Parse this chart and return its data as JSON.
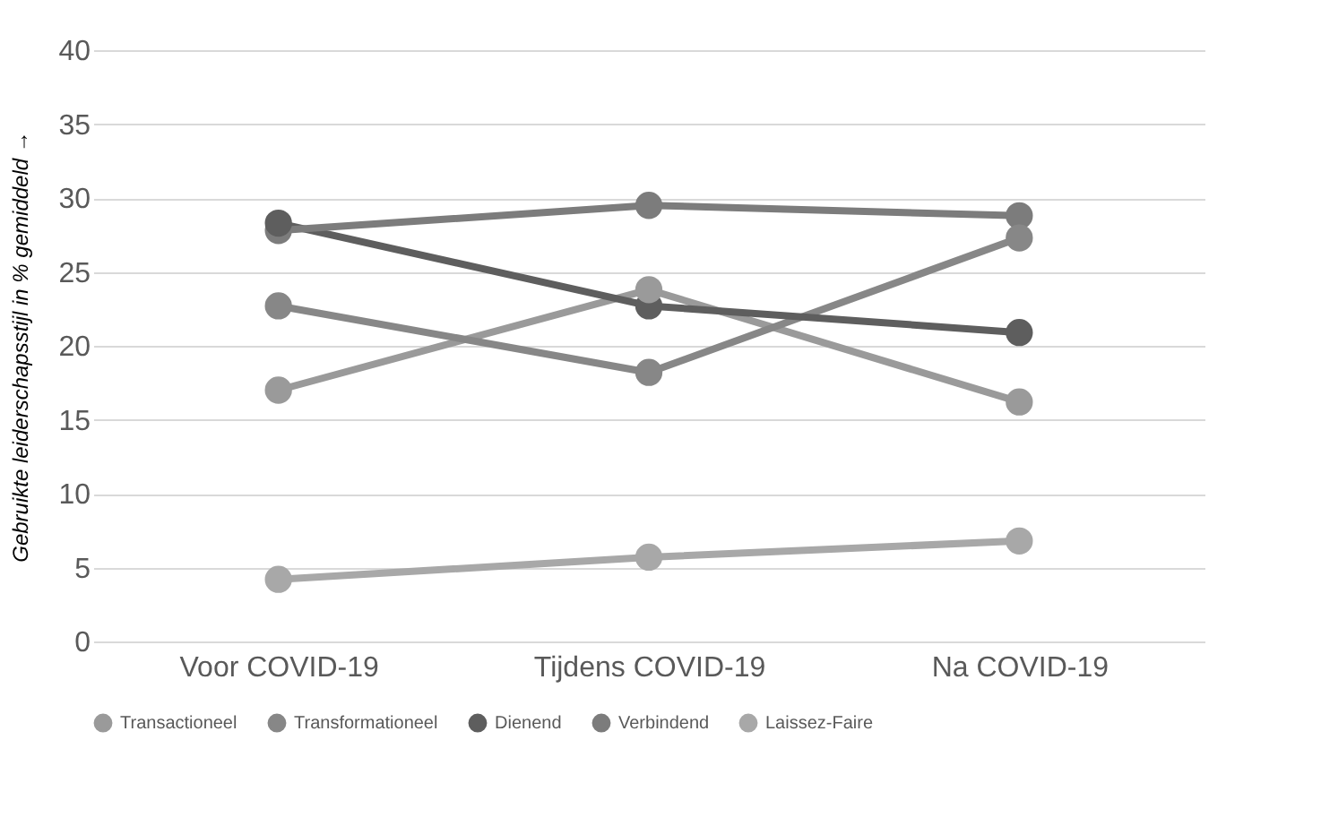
{
  "chart_data": {
    "type": "line",
    "ylabel": "Gebruikte leiderschapsstijl in % gemiddeld →",
    "categories": [
      "Voor COVID-19",
      "Tijdens COVID-19",
      "Na COVID-19"
    ],
    "series": [
      {
        "name": "Transactioneel",
        "color": "#9a9a9a",
        "values": [
          17.0,
          23.8,
          16.2
        ]
      },
      {
        "name": "Transformationeel",
        "color": "#878787",
        "values": [
          22.7,
          18.2,
          27.3
        ]
      },
      {
        "name": "Dienend",
        "color": "#5e5e5e",
        "values": [
          28.3,
          22.7,
          20.9
        ]
      },
      {
        "name": "Verbindend",
        "color": "#7c7c7c",
        "values": [
          27.8,
          29.5,
          28.8
        ]
      },
      {
        "name": "Laissez-Faire",
        "color": "#a8a8a8",
        "values": [
          4.2,
          5.7,
          6.8
        ]
      }
    ],
    "ylim": [
      0,
      40
    ],
    "yticks": [
      0,
      5,
      10,
      15,
      20,
      25,
      30,
      35,
      40
    ],
    "grid": "y",
    "legend": "bottom",
    "marker": "circle",
    "line_style": "solid"
  }
}
